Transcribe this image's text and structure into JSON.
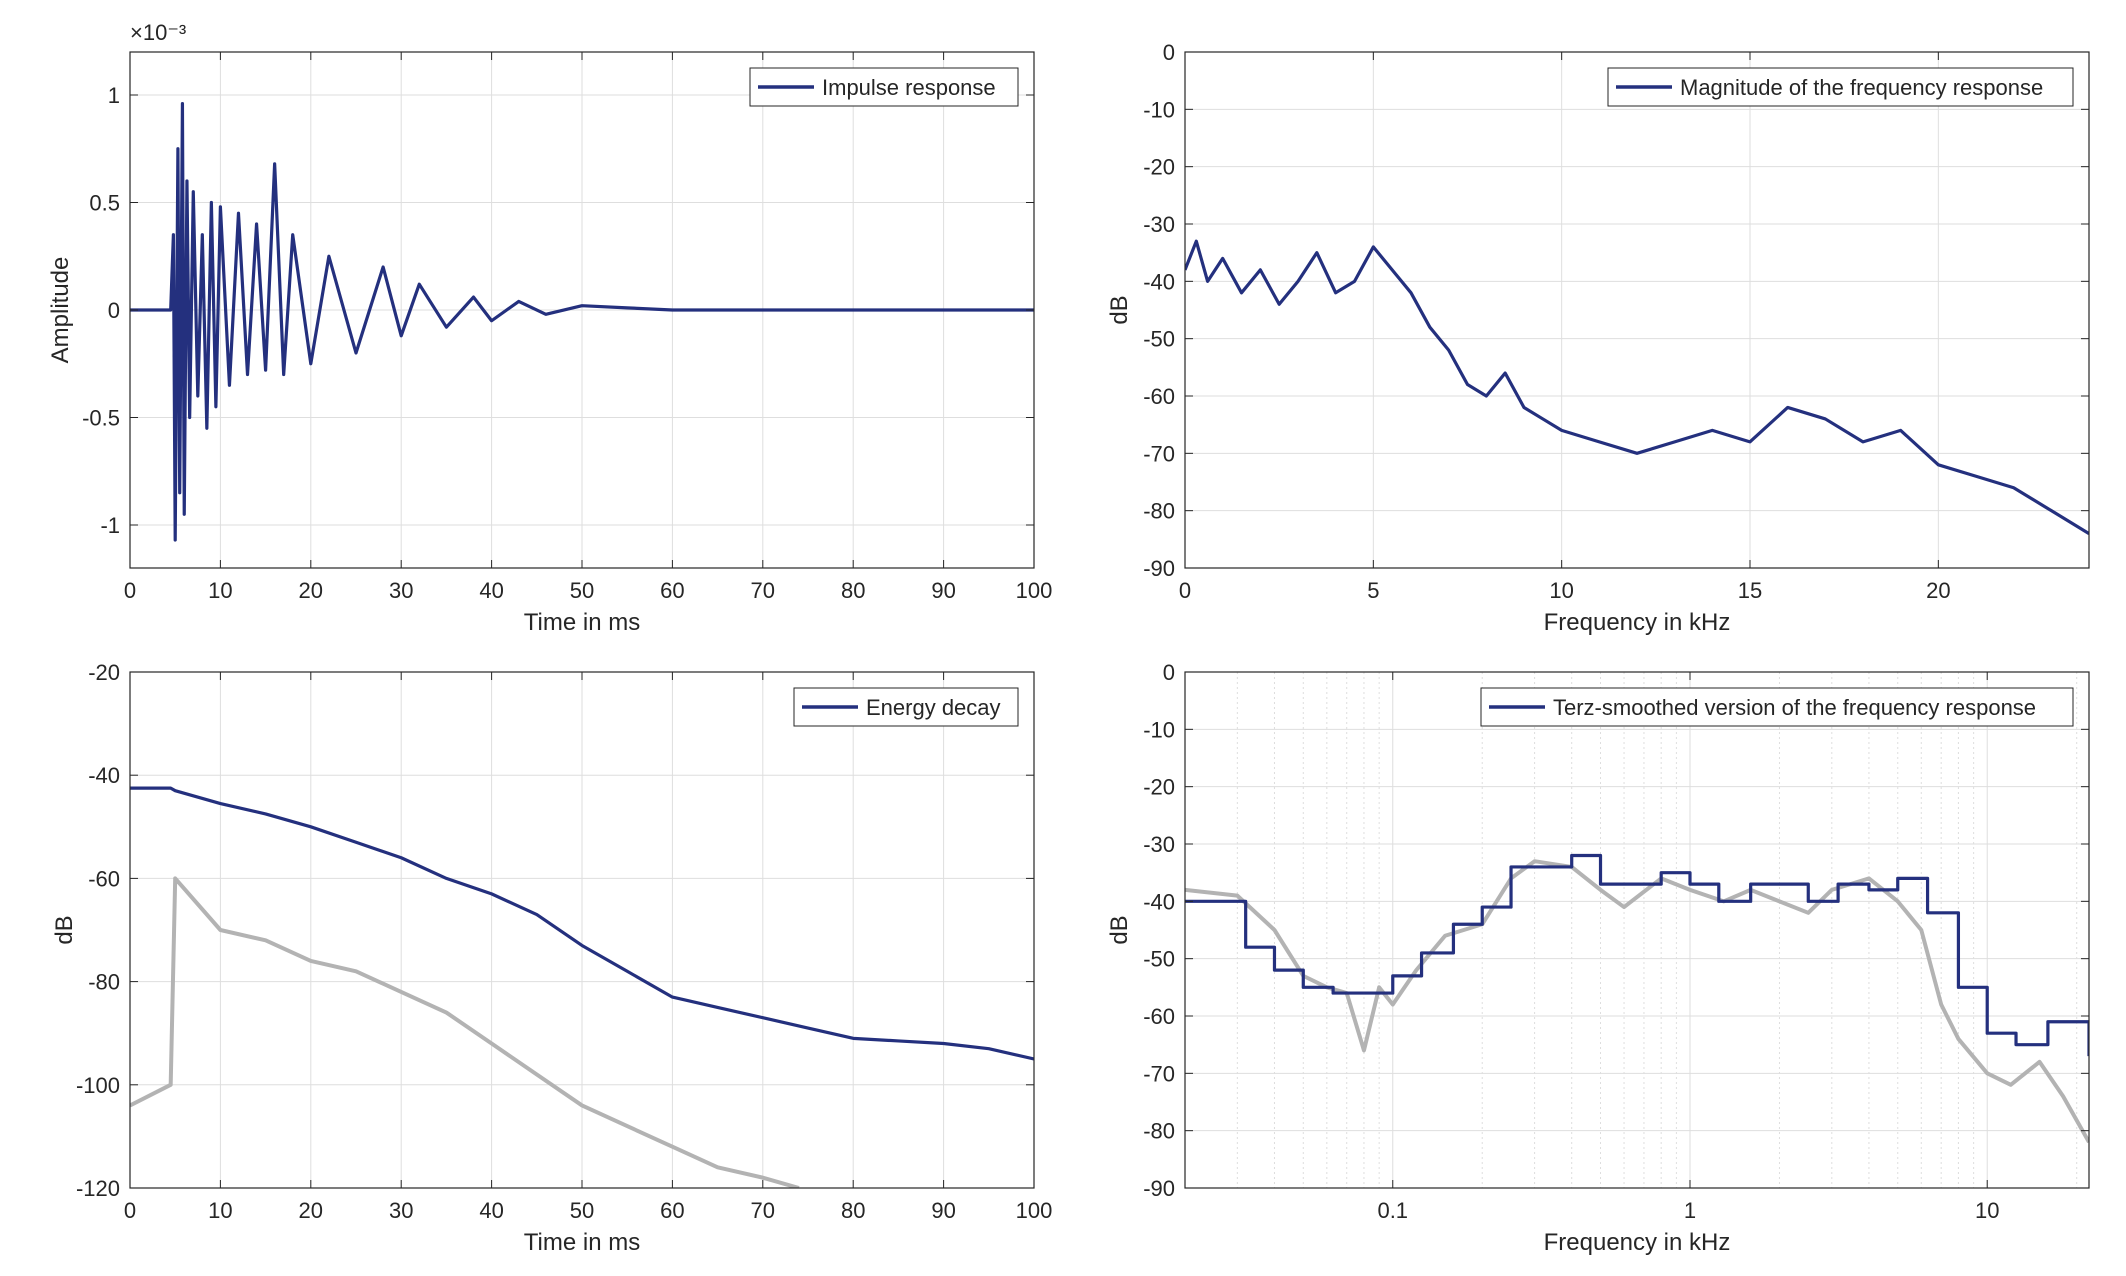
{
  "figure": {
    "background": "#ffffff"
  },
  "colors": {
    "series": "#24307e",
    "gray": "#b3b3b3",
    "grid": "#dedede",
    "axes": "#262626"
  },
  "chart_data": [
    {
      "id": "impulse",
      "type": "line",
      "xlabel": "Time in ms",
      "ylabel": "Amplitude",
      "xlim": [
        0,
        100
      ],
      "ylim": [
        -1.2,
        1.2
      ],
      "xticks": [
        0,
        10,
        20,
        30,
        40,
        50,
        60,
        70,
        80,
        90,
        100
      ],
      "yticks": [
        -1,
        -0.5,
        0,
        0.5,
        1
      ],
      "y_scale_label": "×10⁻³",
      "grid": true,
      "legend": "top-right",
      "series": [
        {
          "name": "Impulse response",
          "color": "#24307e",
          "x": [
            0,
            4.5,
            4.8,
            5.0,
            5.3,
            5.5,
            5.8,
            6.0,
            6.3,
            6.6,
            7.0,
            7.5,
            8.0,
            8.5,
            9.0,
            9.5,
            10.0,
            11,
            12,
            13,
            14,
            15,
            16,
            17,
            18,
            20,
            22,
            25,
            28,
            30,
            32,
            35,
            38,
            40,
            43,
            46,
            50,
            55,
            60,
            70,
            80,
            90,
            100
          ],
          "y": [
            0,
            0,
            0.35,
            -1.07,
            0.75,
            -0.85,
            0.96,
            -0.95,
            0.6,
            -0.5,
            0.55,
            -0.4,
            0.35,
            -0.55,
            0.5,
            -0.45,
            0.48,
            -0.35,
            0.45,
            -0.3,
            0.4,
            -0.28,
            0.68,
            -0.3,
            0.35,
            -0.25,
            0.25,
            -0.2,
            0.2,
            -0.12,
            0.12,
            -0.08,
            0.06,
            -0.05,
            0.04,
            -0.02,
            0.02,
            0.01,
            0,
            0,
            0,
            0,
            0
          ]
        }
      ]
    },
    {
      "id": "magnitude",
      "type": "line",
      "xlabel": "Frequency in kHz",
      "ylabel": "dB",
      "xlim": [
        0,
        24
      ],
      "ylim": [
        -90,
        0
      ],
      "xticks": [
        0,
        5,
        10,
        15,
        20
      ],
      "yticks": [
        0,
        -10,
        -20,
        -30,
        -40,
        -50,
        -60,
        -70,
        -80,
        -90
      ],
      "grid": true,
      "legend": "top-right",
      "series": [
        {
          "name": "Magnitude of the frequency response",
          "color": "#24307e",
          "x": [
            0,
            0.3,
            0.6,
            1.0,
            1.5,
            2.0,
            2.5,
            3.0,
            3.5,
            4.0,
            4.5,
            5.0,
            5.5,
            6.0,
            6.5,
            7.0,
            7.5,
            8.0,
            8.5,
            9.0,
            9.5,
            10.0,
            11,
            12,
            13,
            14,
            15,
            16,
            17,
            18,
            19,
            20,
            21,
            22,
            23,
            24
          ],
          "y": [
            -38,
            -33,
            -40,
            -36,
            -42,
            -38,
            -44,
            -40,
            -35,
            -42,
            -40,
            -34,
            -38,
            -42,
            -48,
            -52,
            -58,
            -60,
            -56,
            -62,
            -64,
            -66,
            -68,
            -70,
            -68,
            -66,
            -68,
            -62,
            -64,
            -68,
            -66,
            -72,
            -74,
            -76,
            -80,
            -84
          ]
        }
      ]
    },
    {
      "id": "energy",
      "type": "line",
      "xlabel": "Time in ms",
      "ylabel": "dB",
      "xlim": [
        0,
        100
      ],
      "ylim": [
        -120,
        -20
      ],
      "xticks": [
        0,
        10,
        20,
        30,
        40,
        50,
        60,
        70,
        80,
        90,
        100
      ],
      "yticks": [
        -20,
        -40,
        -60,
        -80,
        -100,
        -120
      ],
      "grid": true,
      "legend": "top-right",
      "series": [
        {
          "name": "Energy decay",
          "color": "#24307e",
          "x": [
            0,
            4.5,
            5,
            10,
            15,
            20,
            25,
            30,
            35,
            40,
            45,
            50,
            55,
            60,
            65,
            70,
            75,
            80,
            85,
            90,
            95,
            100
          ],
          "y": [
            -42.5,
            -42.5,
            -43,
            -45.5,
            -47.5,
            -50,
            -53,
            -56,
            -60,
            -63,
            -67,
            -73,
            -78,
            -83,
            -85,
            -87,
            -89,
            -91,
            -91.5,
            -92,
            -93,
            -95
          ]
        },
        {
          "name": "",
          "color": "#b3b3b3",
          "x": [
            0,
            4.5,
            5,
            10,
            15,
            20,
            25,
            30,
            35,
            40,
            45,
            50,
            55,
            60,
            65,
            70,
            74
          ],
          "y": [
            -104,
            -100,
            -60,
            -70,
            -72,
            -76,
            -78,
            -82,
            -86,
            -92,
            -98,
            -104,
            -108,
            -112,
            -116,
            -118,
            -120
          ]
        }
      ]
    },
    {
      "id": "terz",
      "type": "line",
      "xlabel": "Frequency in kHz",
      "ylabel": "dB",
      "xscale": "log",
      "xlim": [
        0.02,
        22
      ],
      "ylim": [
        -90,
        0
      ],
      "xticks": [
        0.1,
        1,
        10
      ],
      "xticklabels": [
        "0.1",
        "1",
        "10"
      ],
      "yticks": [
        0,
        -10,
        -20,
        -30,
        -40,
        -50,
        -60,
        -70,
        -80,
        -90
      ],
      "grid": true,
      "legend": "top-right",
      "series": [
        {
          "name": "Terz-smoothed version of the frequency response",
          "color": "#24307e",
          "step": true,
          "x": [
            0.02,
            0.032,
            0.04,
            0.05,
            0.063,
            0.08,
            0.1,
            0.125,
            0.16,
            0.2,
            0.25,
            0.315,
            0.4,
            0.5,
            0.63,
            0.8,
            1.0,
            1.25,
            1.6,
            2.0,
            2.5,
            3.15,
            4.0,
            5.0,
            6.3,
            8.0,
            10.0,
            12.5,
            16.0,
            22
          ],
          "y": [
            -40,
            -48,
            -52,
            -55,
            -56,
            -56,
            -53,
            -49,
            -44,
            -41,
            -34,
            -34,
            -32,
            -37,
            -37,
            -35,
            -37,
            -40,
            -37,
            -37,
            -40,
            -37,
            -38,
            -36,
            -42,
            -55,
            -63,
            -65,
            -61,
            -67
          ]
        },
        {
          "name": "",
          "color": "#b3b3b3",
          "x": [
            0.02,
            0.03,
            0.04,
            0.05,
            0.06,
            0.07,
            0.08,
            0.09,
            0.1,
            0.12,
            0.15,
            0.2,
            0.25,
            0.3,
            0.4,
            0.5,
            0.6,
            0.8,
            1.0,
            1.3,
            1.6,
            2.0,
            2.5,
            3.0,
            4.0,
            5.0,
            6.0,
            7.0,
            8.0,
            10,
            12,
            15,
            18,
            22
          ],
          "y": [
            -38,
            -39,
            -45,
            -53,
            -55,
            -56,
            -66,
            -55,
            -58,
            -52,
            -46,
            -44,
            -36,
            -33,
            -34,
            -38,
            -41,
            -36,
            -38,
            -40,
            -38,
            -40,
            -42,
            -38,
            -36,
            -40,
            -45,
            -58,
            -64,
            -70,
            -72,
            -68,
            -74,
            -82
          ]
        }
      ]
    }
  ]
}
